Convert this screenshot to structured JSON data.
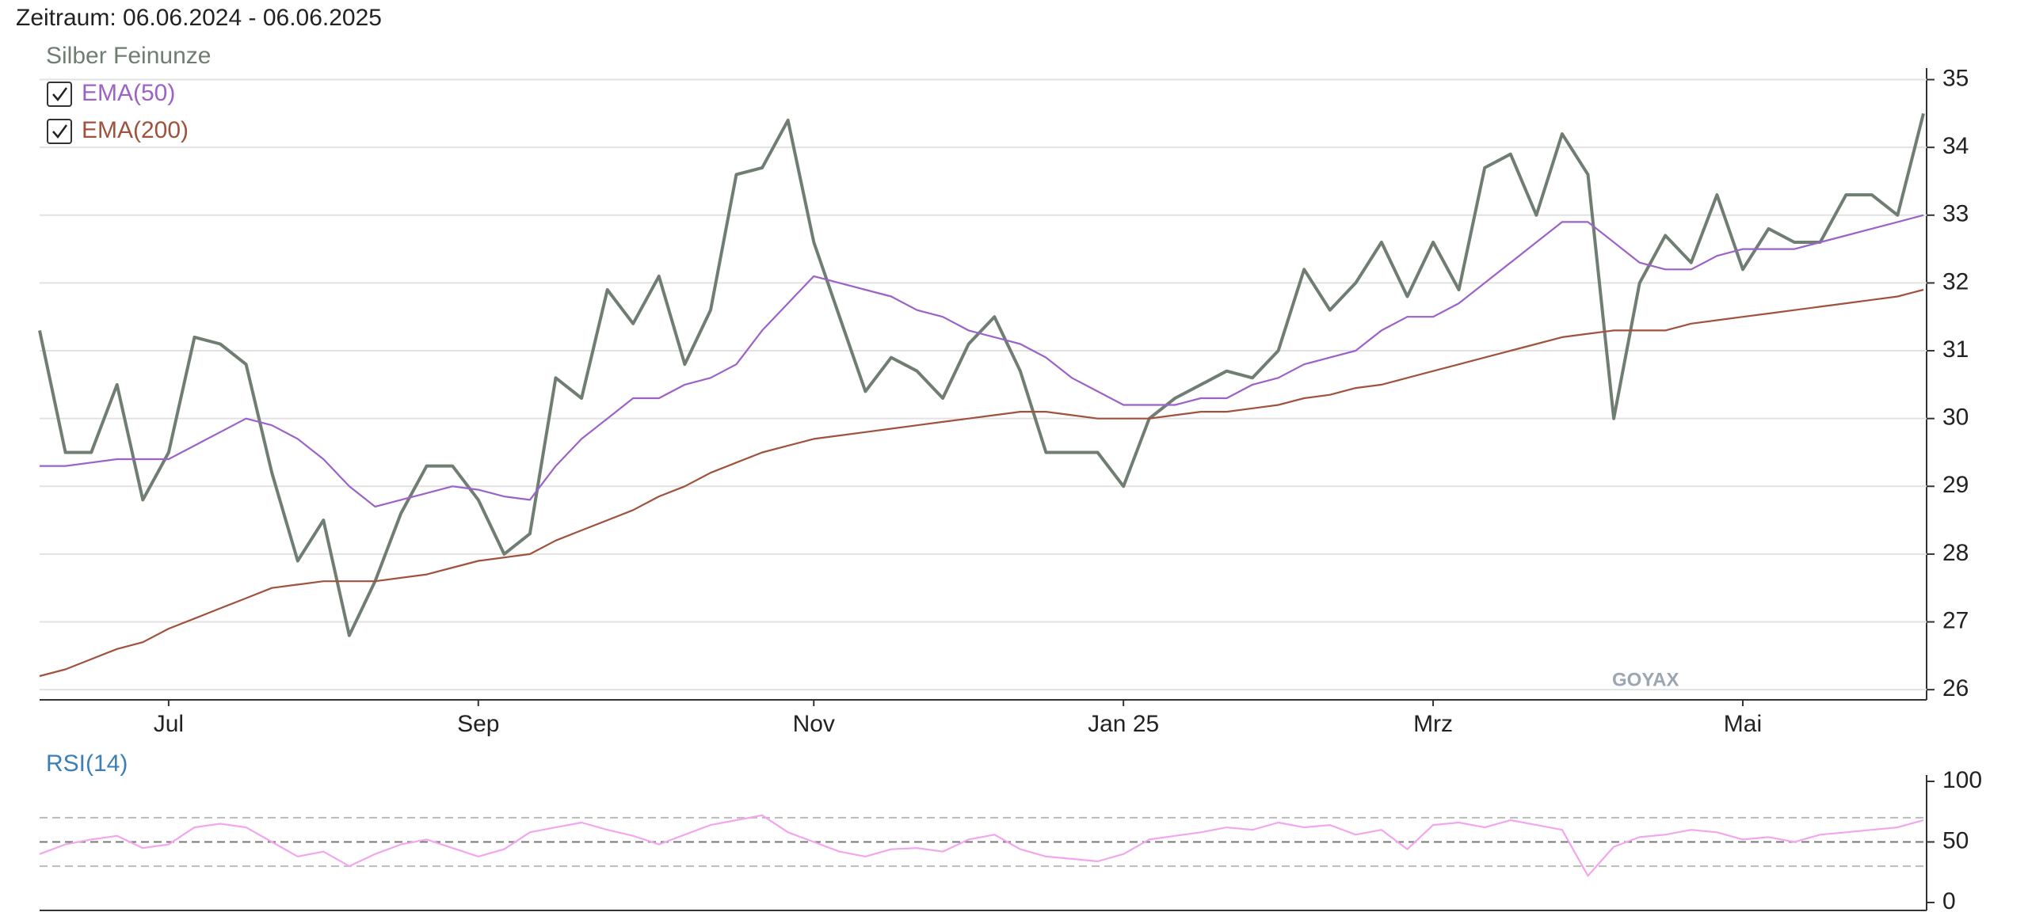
{
  "chart_data": [
    {
      "type": "line",
      "title": "Zeitraum: 06.06.2024 - 06.06.2025",
      "categories": [
        null,
        null,
        null,
        null,
        null,
        "Jul",
        null,
        null,
        null,
        null,
        null,
        null,
        null,
        null,
        null,
        null,
        null,
        "Sep",
        null,
        null,
        null,
        null,
        null,
        null,
        null,
        null,
        null,
        null,
        null,
        null,
        "Nov",
        null,
        null,
        null,
        null,
        null,
        null,
        null,
        null,
        null,
        null,
        null,
        "Jan 25",
        null,
        null,
        null,
        null,
        null,
        null,
        null,
        null,
        null,
        null,
        null,
        "Mrz",
        null,
        null,
        null,
        null,
        null,
        null,
        null,
        null,
        null,
        null,
        null,
        "Mai",
        null,
        null,
        null,
        null,
        null,
        null,
        null
      ],
      "series": [
        {
          "name": "Silber Feinunze",
          "color": "#6f7d72",
          "values": [
            31.3,
            29.5,
            29.5,
            30.5,
            28.8,
            29.5,
            31.2,
            31.1,
            30.8,
            29.2,
            27.9,
            28.5,
            26.8,
            27.6,
            28.6,
            29.3,
            29.3,
            28.8,
            28.0,
            28.3,
            30.6,
            30.3,
            31.9,
            31.4,
            32.1,
            30.8,
            31.6,
            33.6,
            33.7,
            34.4,
            32.6,
            31.5,
            30.4,
            30.9,
            30.7,
            30.3,
            31.1,
            31.5,
            30.7,
            29.5,
            29.5,
            29.5,
            29.0,
            30.0,
            30.3,
            30.5,
            30.7,
            30.6,
            31.0,
            32.2,
            31.6,
            32.0,
            32.6,
            31.8,
            32.6,
            31.9,
            33.7,
            33.9,
            33.0,
            34.2,
            33.6,
            30.0,
            32.0,
            32.7,
            32.3,
            33.3,
            32.2,
            32.8,
            32.6,
            32.6,
            33.3,
            33.3,
            33.0,
            34.5
          ]
        },
        {
          "name": "EMA(50)",
          "color": "#9b62c8",
          "values": [
            29.3,
            29.3,
            29.35,
            29.4,
            29.4,
            29.4,
            29.6,
            29.8,
            30.0,
            29.9,
            29.7,
            29.4,
            29.0,
            28.7,
            28.8,
            28.9,
            29.0,
            28.95,
            28.85,
            28.8,
            29.3,
            29.7,
            30.0,
            30.3,
            30.3,
            30.5,
            30.6,
            30.8,
            31.3,
            31.7,
            32.1,
            32.0,
            31.9,
            31.8,
            31.6,
            31.5,
            31.3,
            31.2,
            31.1,
            30.9,
            30.6,
            30.4,
            30.2,
            30.2,
            30.2,
            30.3,
            30.3,
            30.5,
            30.6,
            30.8,
            30.9,
            31.0,
            31.3,
            31.5,
            31.5,
            31.7,
            32.0,
            32.3,
            32.6,
            32.9,
            32.9,
            32.6,
            32.3,
            32.2,
            32.2,
            32.4,
            32.5,
            32.5,
            32.5,
            32.6,
            32.7,
            32.8,
            32.9,
            33.0
          ]
        },
        {
          "name": "EMA(200)",
          "color": "#a0523d",
          "values": [
            26.2,
            26.3,
            26.45,
            26.6,
            26.7,
            26.9,
            27.05,
            27.2,
            27.35,
            27.5,
            27.55,
            27.6,
            27.6,
            27.6,
            27.65,
            27.7,
            27.8,
            27.9,
            27.95,
            28.0,
            28.2,
            28.35,
            28.5,
            28.65,
            28.85,
            29.0,
            29.2,
            29.35,
            29.5,
            29.6,
            29.7,
            29.75,
            29.8,
            29.85,
            29.9,
            29.95,
            30.0,
            30.05,
            30.1,
            30.1,
            30.05,
            30.0,
            30.0,
            30.0,
            30.05,
            30.1,
            30.1,
            30.15,
            30.2,
            30.3,
            30.35,
            30.45,
            30.5,
            30.6,
            30.7,
            30.8,
            30.9,
            31.0,
            31.1,
            31.2,
            31.25,
            31.3,
            31.3,
            31.3,
            31.4,
            31.45,
            31.5,
            31.55,
            31.6,
            31.65,
            31.7,
            31.75,
            31.8,
            31.9
          ]
        }
      ],
      "ylim": [
        25.85,
        35.17
      ],
      "yticks": [
        26,
        27,
        28,
        29,
        30,
        31,
        32,
        33,
        34,
        35
      ],
      "grid": true,
      "watermark": "GOYAX"
    },
    {
      "type": "line",
      "series": [
        {
          "name": "RSI(14)",
          "color": "#f2a6ee",
          "values": [
            40,
            48,
            52,
            55,
            45,
            48,
            62,
            65,
            62,
            50,
            38,
            42,
            30,
            40,
            48,
            52,
            45,
            38,
            44,
            58,
            62,
            66,
            60,
            55,
            48,
            56,
            64,
            68,
            72,
            58,
            50,
            42,
            38,
            44,
            45,
            42,
            52,
            56,
            44,
            38,
            36,
            34,
            40,
            52,
            55,
            58,
            62,
            60,
            66,
            62,
            64,
            56,
            60,
            44,
            64,
            66,
            62,
            68,
            64,
            60,
            22,
            46,
            54,
            56,
            60,
            58,
            52,
            54,
            50,
            56,
            58,
            60,
            62,
            68
          ]
        }
      ],
      "ylim": [
        0,
        100
      ],
      "yticks": [
        0,
        50,
        100
      ],
      "hlines": [
        30,
        50,
        70
      ]
    }
  ]
}
